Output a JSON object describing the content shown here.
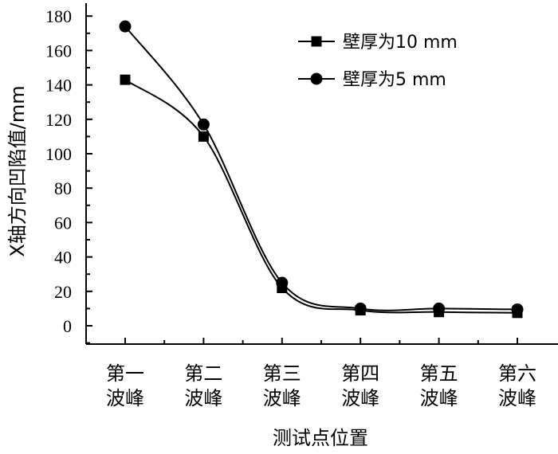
{
  "chart_data": {
    "type": "line",
    "categories": [
      [
        "第一",
        "波峰"
      ],
      [
        "第二",
        "波峰"
      ],
      [
        "第三",
        "波峰"
      ],
      [
        "第四",
        "波峰"
      ],
      [
        "第五",
        "波峰"
      ],
      [
        "第六",
        "波峰"
      ]
    ],
    "series": [
      {
        "name": "壁厚为10 mm",
        "marker": "square",
        "values": [
          143,
          110,
          22,
          9,
          8,
          7.5
        ]
      },
      {
        "name": "壁厚为5 mm",
        "marker": "circle",
        "values": [
          174,
          117,
          25,
          10,
          10,
          9.5
        ]
      }
    ],
    "xlabel": "测试点位置",
    "ylabel": "X轴方向凹陷值/mm",
    "ylim": [
      -10,
      190
    ],
    "yticks": [
      0,
      20,
      40,
      60,
      80,
      100,
      120,
      140,
      160,
      180
    ],
    "legend_position": "top-right",
    "grid": false,
    "colors": {
      "line": "#000000",
      "background": "#ffffff"
    }
  }
}
